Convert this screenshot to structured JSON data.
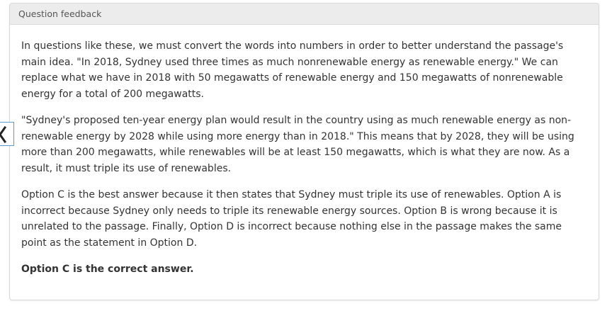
{
  "panel": {
    "header": "Question feedback",
    "paragraphs": [
      "In questions like these, we must convert the words into numbers in order to better understand the passage's main idea. \"In 2018, Sydney used three times as much nonrenewable energy as renewable energy.\" We can replace what we have in 2018 with 50 megawatts of renewable energy and 150 megawatts of nonrenewable energy for a total of 200 megawatts.",
      "\"Sydney's proposed ten-year energy plan would result in the country using as much renewable energy as non-renewable energy by 2028 while using more energy than in 2018.\" This means that by 2028, they will be using more than 200 megawatts, while renewables will be at least 150 megawatts, which is what they are now. As a result, it must triple its use of renewables.",
      "Option C is the best answer because it then states that Sydney must triple its use of renewables. Option A is incorrect because Sydney only needs to triple its renewable energy sources. Option B is wrong because it is unrelated to the passage. Finally, Option D is incorrect because nothing else in the passage makes the same point as the statement in Option D."
    ],
    "answer": "Option C is the correct answer."
  },
  "side_tab": {
    "icon": "chevron-left-icon",
    "border_color": "#5b9bd5"
  }
}
